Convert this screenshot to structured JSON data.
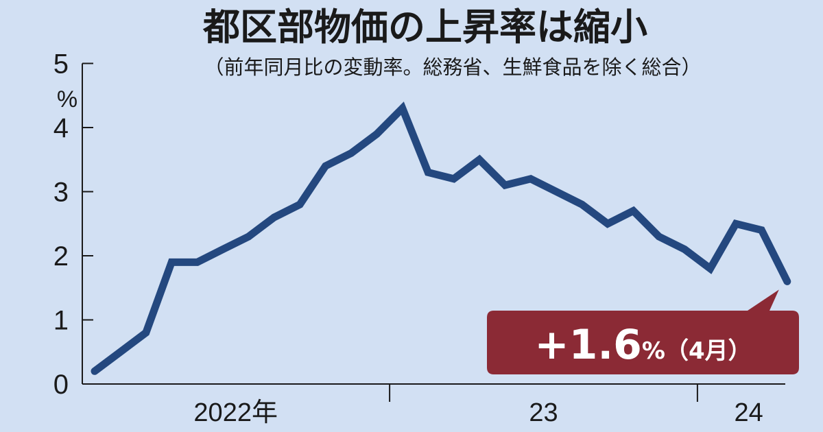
{
  "chart_data": {
    "type": "line",
    "title": "都区部物価の上昇率は縮小",
    "subtitle": "（前年同月比の変動率。総務省、生鮮食品を除く総合）",
    "y_unit": "%",
    "ylim": [
      0,
      5
    ],
    "y_ticks": [
      "0",
      "1",
      "2",
      "3",
      "4",
      "5"
    ],
    "x_ticks": [
      "2022年",
      "23",
      "24"
    ],
    "x": [
      "2022-01",
      "2022-02",
      "2022-03",
      "2022-04",
      "2022-05",
      "2022-06",
      "2022-07",
      "2022-08",
      "2022-09",
      "2022-10",
      "2022-11",
      "2022-12",
      "2023-01",
      "2023-02",
      "2023-03",
      "2023-04",
      "2023-05",
      "2023-06",
      "2023-07",
      "2023-08",
      "2023-09",
      "2023-10",
      "2023-11",
      "2023-12",
      "2024-01",
      "2024-02",
      "2024-03",
      "2024-04"
    ],
    "values": [
      0.2,
      0.5,
      0.8,
      1.9,
      1.9,
      2.1,
      2.3,
      2.6,
      2.8,
      3.4,
      3.6,
      3.9,
      4.3,
      3.3,
      3.2,
      3.5,
      3.1,
      3.2,
      3.0,
      2.8,
      2.5,
      2.7,
      2.3,
      2.1,
      1.8,
      2.5,
      2.4,
      1.6
    ],
    "callout": {
      "value_text": "+1.6",
      "unit_text": "%",
      "note_text": "（4月）"
    },
    "colors": {
      "background": "#d2e0f3",
      "line": "#24487f",
      "callout": "#8b2a35"
    }
  }
}
